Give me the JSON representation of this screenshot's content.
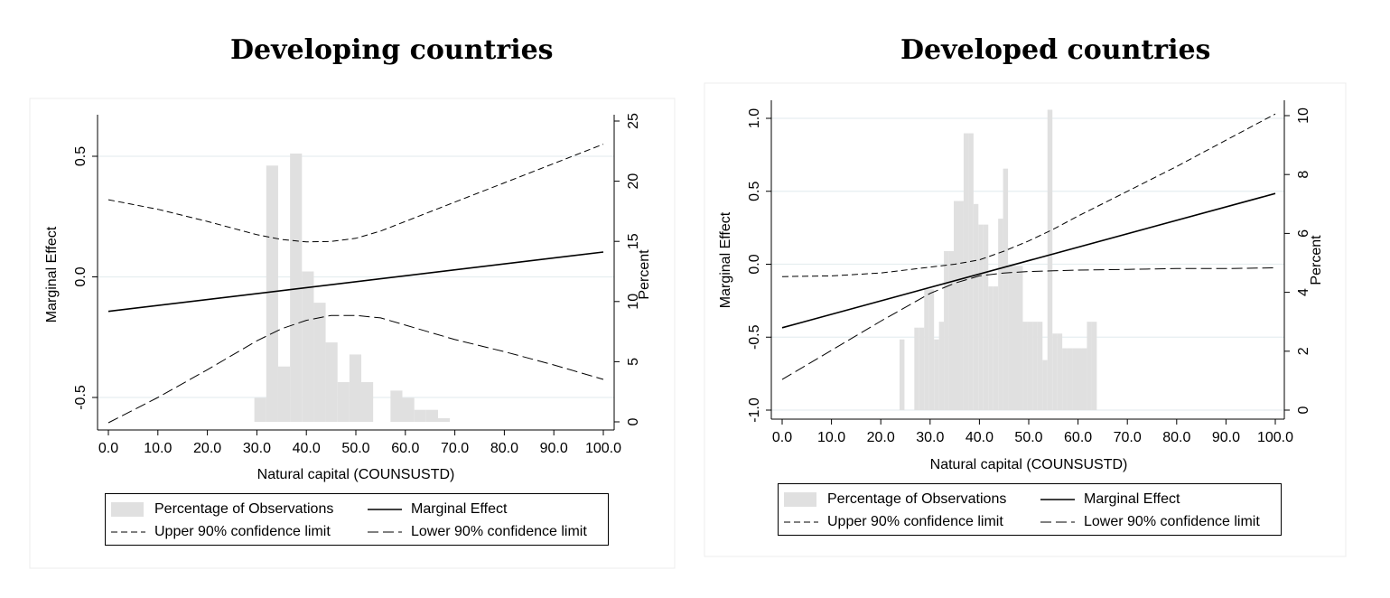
{
  "chart_data": [
    {
      "type": "bar+line",
      "title": "Developing countries",
      "xlabel": "Natural capital (COUNSUSTD)",
      "ylabel": "Marginal Effect",
      "y2label": "Percent",
      "xlim": [
        0,
        100
      ],
      "ylim": [
        -0.6,
        0.63
      ],
      "y2lim": [
        0,
        25
      ],
      "xticks": [
        "0.0",
        "10.0",
        "20.0",
        "30.0",
        "40.0",
        "50.0",
        "60.0",
        "70.0",
        "80.0",
        "90.0",
        "100.0"
      ],
      "yticks": [
        "-0.5",
        "0.0",
        "0.5"
      ],
      "y2ticks": [
        "0",
        "5",
        "10",
        "15",
        "20",
        "25"
      ],
      "histogram": {
        "bin_width": 2.4,
        "bins": [
          {
            "x": 29.5,
            "value": 2.0
          },
          {
            "x": 31.9,
            "value": 21.3
          },
          {
            "x": 34.3,
            "value": 4.6
          },
          {
            "x": 36.7,
            "value": 22.3
          },
          {
            "x": 39.1,
            "value": 12.5
          },
          {
            "x": 41.5,
            "value": 9.9
          },
          {
            "x": 43.9,
            "value": 6.6
          },
          {
            "x": 46.3,
            "value": 3.3
          },
          {
            "x": 48.7,
            "value": 5.6
          },
          {
            "x": 51.1,
            "value": 3.3
          },
          {
            "x": 57.0,
            "value": 2.6
          },
          {
            "x": 59.4,
            "value": 2.0
          },
          {
            "x": 61.8,
            "value": 1.0
          },
          {
            "x": 64.2,
            "value": 1.0
          },
          {
            "x": 66.6,
            "value": 0.3
          }
        ]
      },
      "series": [
        {
          "name": "Marginal Effect",
          "style": "solid",
          "x": [
            0,
            100
          ],
          "values": [
            -0.143,
            0.103
          ]
        },
        {
          "name": "Upper 90% confidence limit",
          "style": "dashed",
          "x": [
            0,
            10,
            20,
            30,
            35,
            40,
            45,
            50,
            55,
            60,
            70,
            80,
            90,
            100
          ],
          "values": [
            0.32,
            0.28,
            0.23,
            0.175,
            0.155,
            0.145,
            0.147,
            0.16,
            0.19,
            0.23,
            0.31,
            0.39,
            0.47,
            0.55
          ]
        },
        {
          "name": "Lower 90% confidence limit",
          "style": "dashed",
          "x": [
            0,
            10,
            20,
            30,
            35,
            40,
            45,
            50,
            55,
            60,
            70,
            80,
            90,
            100
          ],
          "values": [
            -0.605,
            -0.5,
            -0.385,
            -0.265,
            -0.215,
            -0.18,
            -0.16,
            -0.16,
            -0.17,
            -0.2,
            -0.26,
            -0.31,
            -0.365,
            -0.425
          ]
        }
      ],
      "legend": {
        "items": [
          "Percentage of Observations",
          "Marginal Effect",
          "Upper 90% confidence limit",
          "Lower 90% confidence limit"
        ]
      }
    },
    {
      "type": "bar+line",
      "title": "Developed countries",
      "xlabel": "Natural capital (COUNSUSTD)",
      "ylabel": "Marginal Effect",
      "y2label": "Percent",
      "xlim": [
        0,
        100
      ],
      "ylim": [
        -1.02,
        1.06
      ],
      "y2lim": [
        0,
        10.3
      ],
      "xticks": [
        "0.0",
        "10.0",
        "20.0",
        "30.0",
        "40.0",
        "50.0",
        "60.0",
        "70.0",
        "80.0",
        "90.0",
        "100.0"
      ],
      "yticks": [
        "-1.0",
        "-0.5",
        "0.0",
        "0.5",
        "1.0"
      ],
      "y2ticks": [
        "0",
        "2",
        "4",
        "6",
        "8",
        "10"
      ],
      "histogram": {
        "bin_width": 1.0,
        "bins": [
          {
            "x": 23.8,
            "value": 2.4
          },
          {
            "x": 26.8,
            "value": 2.8
          },
          {
            "x": 27.8,
            "value": 2.8
          },
          {
            "x": 28.8,
            "value": 4.1
          },
          {
            "x": 29.8,
            "value": 4.1
          },
          {
            "x": 30.8,
            "value": 2.4
          },
          {
            "x": 31.8,
            "value": 3.0
          },
          {
            "x": 32.8,
            "value": 5.4
          },
          {
            "x": 33.8,
            "value": 5.4
          },
          {
            "x": 34.8,
            "value": 7.1
          },
          {
            "x": 35.8,
            "value": 7.1
          },
          {
            "x": 36.8,
            "value": 9.4
          },
          {
            "x": 37.8,
            "value": 9.4
          },
          {
            "x": 38.8,
            "value": 7.0
          },
          {
            "x": 39.8,
            "value": 6.3
          },
          {
            "x": 40.8,
            "value": 6.3
          },
          {
            "x": 41.8,
            "value": 4.2
          },
          {
            "x": 42.8,
            "value": 4.2
          },
          {
            "x": 43.8,
            "value": 6.5
          },
          {
            "x": 44.8,
            "value": 8.2
          },
          {
            "x": 45.8,
            "value": 4.9
          },
          {
            "x": 46.8,
            "value": 4.9
          },
          {
            "x": 47.8,
            "value": 4.9
          },
          {
            "x": 48.8,
            "value": 3.0
          },
          {
            "x": 49.8,
            "value": 3.0
          },
          {
            "x": 50.8,
            "value": 3.0
          },
          {
            "x": 51.8,
            "value": 3.0
          },
          {
            "x": 52.8,
            "value": 1.7
          },
          {
            "x": 53.8,
            "value": 10.2
          },
          {
            "x": 54.8,
            "value": 2.6
          },
          {
            "x": 55.8,
            "value": 2.6
          },
          {
            "x": 56.8,
            "value": 2.1
          },
          {
            "x": 57.8,
            "value": 2.1
          },
          {
            "x": 58.8,
            "value": 2.1
          },
          {
            "x": 59.8,
            "value": 2.1
          },
          {
            "x": 60.8,
            "value": 2.1
          },
          {
            "x": 61.8,
            "value": 3.0
          },
          {
            "x": 62.8,
            "value": 3.0
          }
        ]
      },
      "series": [
        {
          "name": "Marginal Effect",
          "style": "solid",
          "x": [
            0,
            100
          ],
          "values": [
            -0.435,
            0.485
          ]
        },
        {
          "name": "Upper 90% confidence limit",
          "style": "dashed",
          "x": [
            0,
            10,
            20,
            30,
            35,
            40,
            45,
            50,
            55,
            60,
            70,
            80,
            90,
            100
          ],
          "values": [
            -0.085,
            -0.08,
            -0.06,
            -0.02,
            0.0,
            0.03,
            0.09,
            0.16,
            0.24,
            0.33,
            0.5,
            0.67,
            0.85,
            1.03
          ]
        },
        {
          "name": "Lower 90% confidence limit",
          "style": "dashed",
          "x": [
            0,
            10,
            20,
            30,
            35,
            40,
            45,
            50,
            55,
            60,
            70,
            80,
            90,
            100
          ],
          "values": [
            -0.79,
            -0.59,
            -0.39,
            -0.2,
            -0.13,
            -0.08,
            -0.06,
            -0.05,
            -0.045,
            -0.04,
            -0.035,
            -0.03,
            -0.03,
            -0.025
          ]
        }
      ],
      "legend": {
        "items": [
          "Percentage of Observations",
          "Marginal Effect",
          "Upper 90% confidence limit",
          "Lower 90% confidence limit"
        ]
      }
    }
  ]
}
